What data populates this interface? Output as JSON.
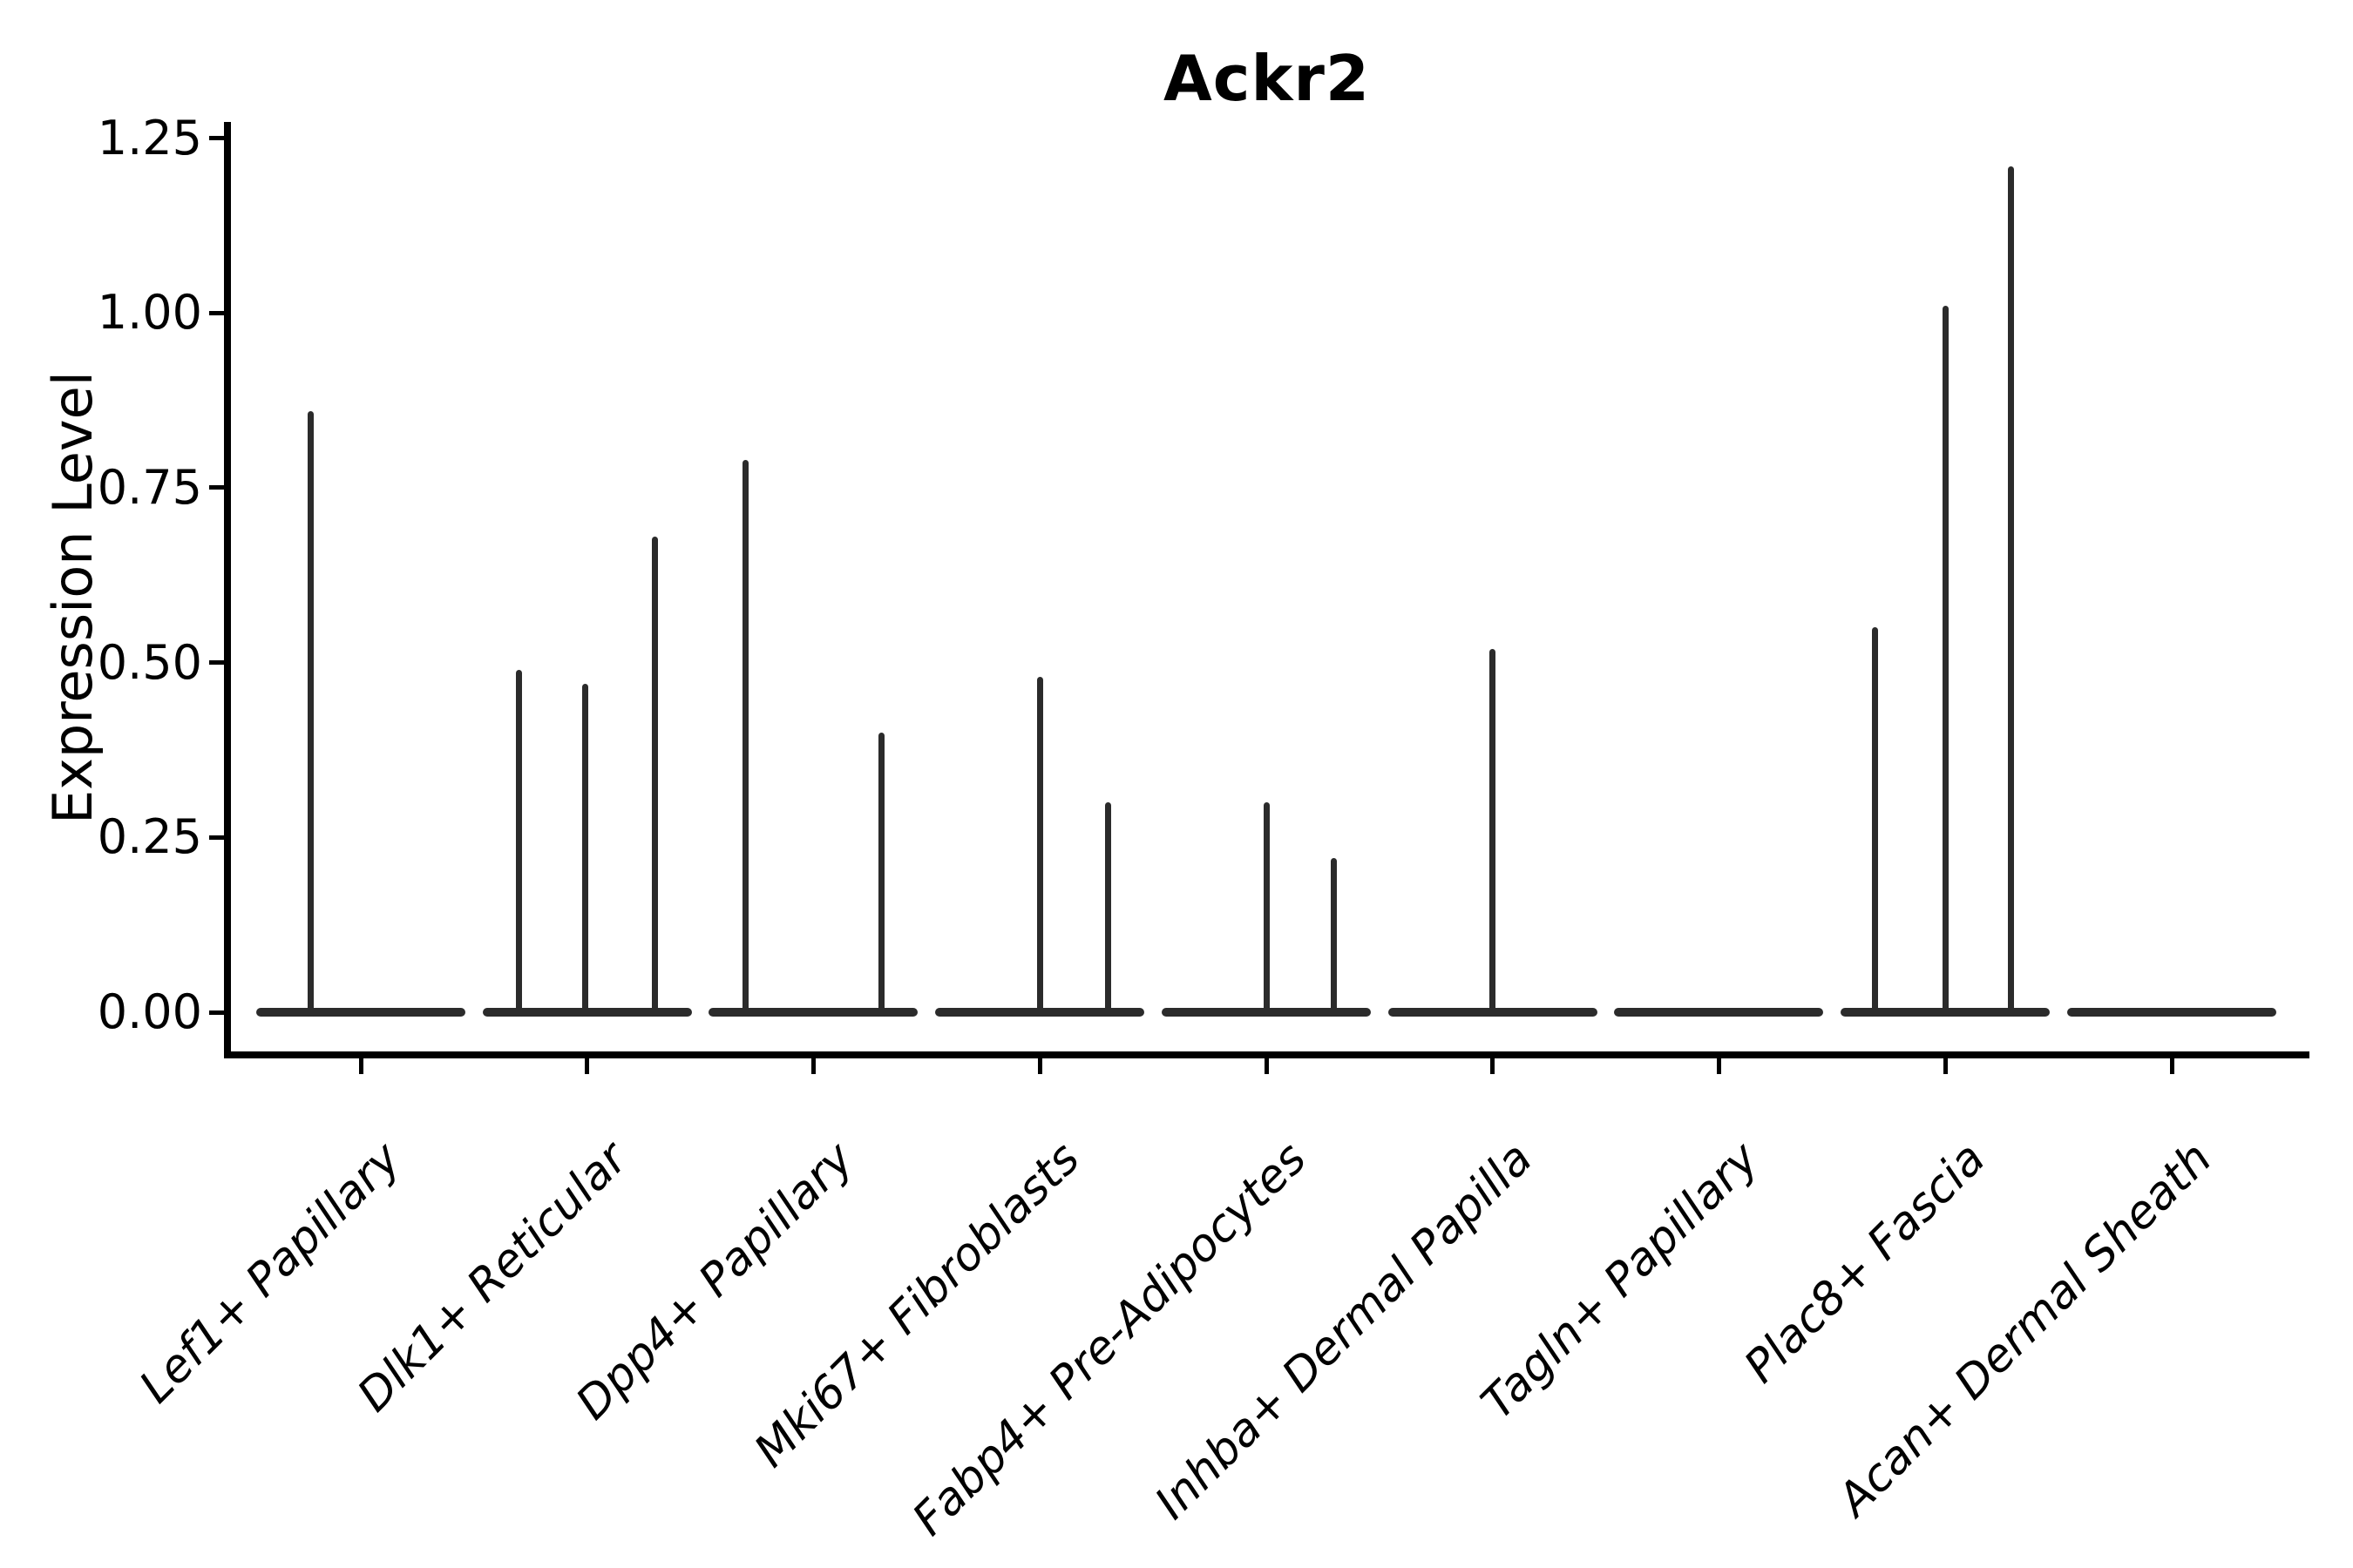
{
  "page": {
    "background": "#ffffff"
  },
  "chart_data": {
    "type": "violin",
    "title": "Ackr2",
    "xlabel": "",
    "ylabel": "Expression Level",
    "ylim": [
      0,
      1.25
    ],
    "yticks": [
      0.0,
      0.25,
      0.5,
      0.75,
      1.0,
      1.25
    ],
    "ytick_labels": [
      "0.00",
      "0.25",
      "0.50",
      "0.75",
      "1.00",
      "1.25"
    ],
    "grid": false,
    "legend": "none",
    "categories": [
      "Lef1+ Papillary",
      "Dlk1+ Reticular",
      "Dpp4+ Papillary",
      "Mki67+ Fibroblasts",
      "Fabp4+ Pre-Adipocytes",
      "Inhba+ Dermal Papilla",
      "Tagln+ Papillary",
      "Plac8+ Fascia",
      "Acan+ Dermal Sheath"
    ],
    "violins": [
      {
        "category": "Lef1+ Papillary",
        "baseline_value": 0,
        "spikes": [
          {
            "offset": -0.22,
            "value": 0.86
          }
        ]
      },
      {
        "category": "Dlk1+ Reticular",
        "baseline_value": 0,
        "spikes": [
          {
            "offset": -0.3,
            "value": 0.49
          },
          {
            "offset": -0.01,
            "value": 0.47
          },
          {
            "offset": 0.3,
            "value": 0.68
          }
        ]
      },
      {
        "category": "Dpp4+ Papillary",
        "baseline_value": 0,
        "spikes": [
          {
            "offset": -0.3,
            "value": 0.79
          },
          {
            "offset": 0.3,
            "value": 0.4
          }
        ]
      },
      {
        "category": "Mki67+ Fibroblasts",
        "baseline_value": 0,
        "spikes": [
          {
            "offset": 0.0,
            "value": 0.48
          },
          {
            "offset": 0.3,
            "value": 0.3
          }
        ]
      },
      {
        "category": "Fabp4+ Pre-Adipocytes",
        "baseline_value": 0,
        "spikes": [
          {
            "offset": 0.0,
            "value": 0.3
          },
          {
            "offset": 0.3,
            "value": 0.22
          }
        ]
      },
      {
        "category": "Inhba+ Dermal Papilla",
        "baseline_value": 0,
        "spikes": [
          {
            "offset": 0.0,
            "value": 0.52
          }
        ]
      },
      {
        "category": "Tagln+ Papillary",
        "baseline_value": 0,
        "spikes": []
      },
      {
        "category": "Plac8+ Fascia",
        "baseline_value": 0,
        "spikes": [
          {
            "offset": -0.31,
            "value": 0.55
          },
          {
            "offset": 0.0,
            "value": 1.01
          },
          {
            "offset": 0.29,
            "value": 1.21
          }
        ]
      },
      {
        "category": "Acan+ Dermal Sheath",
        "baseline_value": 0,
        "spikes": []
      }
    ],
    "violin_width_fraction": 0.924,
    "colors": {
      "violin": "#2b2b2b",
      "axis": "#000000",
      "text": "#000000",
      "background": "#ffffff"
    }
  }
}
